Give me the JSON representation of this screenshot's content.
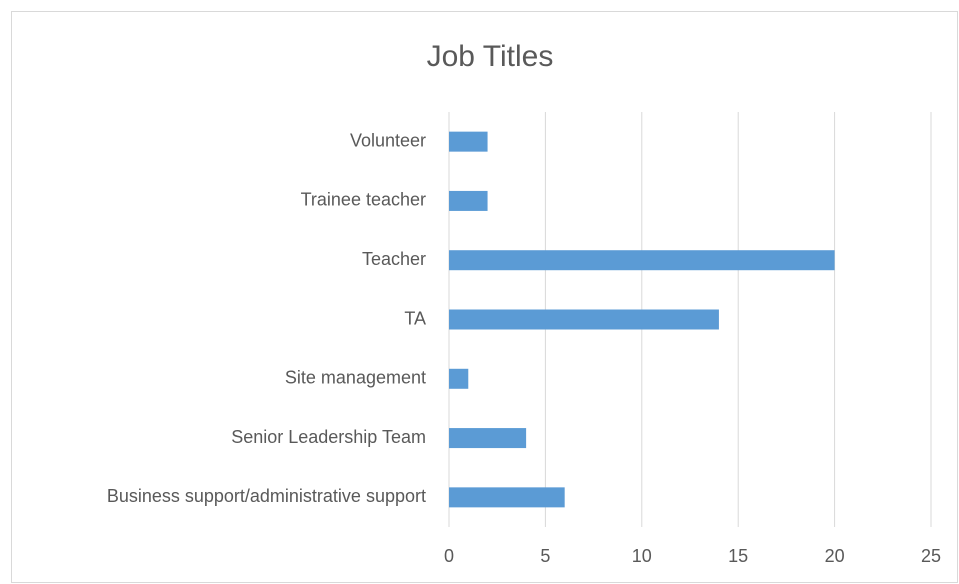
{
  "chart_data": {
    "type": "bar",
    "orientation": "horizontal",
    "title": "Job Titles",
    "categories": [
      "Business support/administrative support",
      "Senior Leadership Team",
      "Site management",
      "TA",
      "Teacher",
      "Trainee teacher",
      "Volunteer"
    ],
    "values": [
      6,
      4,
      1,
      14,
      20,
      2,
      2
    ],
    "color": "#5b9bd5",
    "xlim": [
      0,
      25
    ],
    "xticks": [
      0,
      5,
      10,
      15,
      20,
      25
    ],
    "grid": true
  }
}
